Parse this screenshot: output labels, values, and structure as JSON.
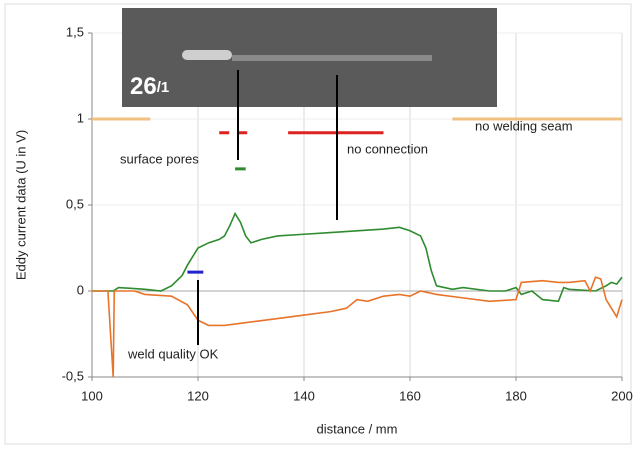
{
  "chart_data": {
    "type": "line",
    "x_label": "distance / mm",
    "y_label": "Eddy current data (U in V)",
    "xlim": [
      100,
      200
    ],
    "xticks": [
      100,
      120,
      140,
      160,
      180,
      200
    ],
    "ylim": [
      -0.5,
      1.5
    ],
    "yticks": [
      {
        "value": -0.5,
        "label": "-0,5"
      },
      0,
      {
        "value": 0.5,
        "label": "0,5"
      },
      1,
      {
        "value": 1.5,
        "label": "1,5"
      }
    ],
    "grid": true,
    "series": [
      {
        "color": "#2e8b2e",
        "x": [
          100,
          104,
          105,
          110,
          113,
          115,
          117,
          118,
          119,
          120,
          122,
          124,
          125,
          126,
          127,
          128,
          129,
          130,
          132,
          135,
          140,
          145,
          150,
          155,
          158,
          160,
          162,
          163,
          164,
          165,
          168,
          170,
          175,
          178,
          180,
          181,
          183,
          185,
          188,
          189,
          190,
          195,
          197,
          198,
          199,
          200
        ],
        "values": [
          0.0,
          0.0,
          0.02,
          0.01,
          0.0,
          0.03,
          0.09,
          0.15,
          0.2,
          0.25,
          0.28,
          0.3,
          0.32,
          0.38,
          0.45,
          0.4,
          0.32,
          0.28,
          0.3,
          0.32,
          0.33,
          0.34,
          0.35,
          0.36,
          0.37,
          0.35,
          0.32,
          0.25,
          0.12,
          0.03,
          0.01,
          0.02,
          0.0,
          0.0,
          0.02,
          -0.02,
          0.0,
          -0.05,
          -0.06,
          0.02,
          0.01,
          0.0,
          0.03,
          0.05,
          0.04,
          0.08
        ]
      },
      {
        "color": "#e8742a",
        "x": [
          100,
          103,
          104,
          104.2,
          108,
          110,
          115,
          118,
          120,
          122,
          125,
          130,
          135,
          140,
          145,
          148,
          150,
          152,
          155,
          158,
          160,
          162,
          165,
          170,
          175,
          180,
          181,
          185,
          188,
          190,
          193,
          194,
          195,
          196,
          197,
          198,
          199,
          200
        ],
        "values": [
          0.0,
          0.0,
          -0.5,
          0.0,
          0.0,
          -0.02,
          -0.03,
          -0.08,
          -0.17,
          -0.2,
          -0.2,
          -0.18,
          -0.16,
          -0.14,
          -0.12,
          -0.1,
          -0.05,
          -0.06,
          -0.03,
          -0.02,
          -0.03,
          0.0,
          -0.02,
          -0.04,
          -0.06,
          -0.05,
          0.05,
          0.06,
          0.05,
          0.05,
          0.06,
          0.0,
          0.08,
          0.07,
          -0.05,
          -0.1,
          -0.15,
          -0.05
        ]
      }
    ],
    "segments": [
      {
        "x": [
          100,
          111
        ],
        "y": 1,
        "color": "#f0c080",
        "dashed": false
      },
      {
        "x": [
          168,
          200
        ],
        "y": 1,
        "color": "#f0c080",
        "dashed": false
      },
      {
        "x": [
          124,
          130
        ],
        "y": 0.92,
        "color": "#dd2222",
        "dashed": true
      },
      {
        "x": [
          137,
          155
        ],
        "y": 0.92,
        "color": "#dd2222",
        "dashed": false
      },
      {
        "x": [
          127,
          129
        ],
        "y": 0.71,
        "color": "#2e8b2e",
        "dashed": false
      },
      {
        "x": [
          118,
          121
        ],
        "y": 0.11,
        "color": "#2222cc",
        "dashed": false
      }
    ],
    "annotations": {
      "surface_pores": "surface pores",
      "no_connection": "no connection",
      "no_welding_seam": "no welding seam",
      "weld_quality": "weld quality OK"
    },
    "inset": {
      "number": "26",
      "suffix": "/1"
    }
  }
}
